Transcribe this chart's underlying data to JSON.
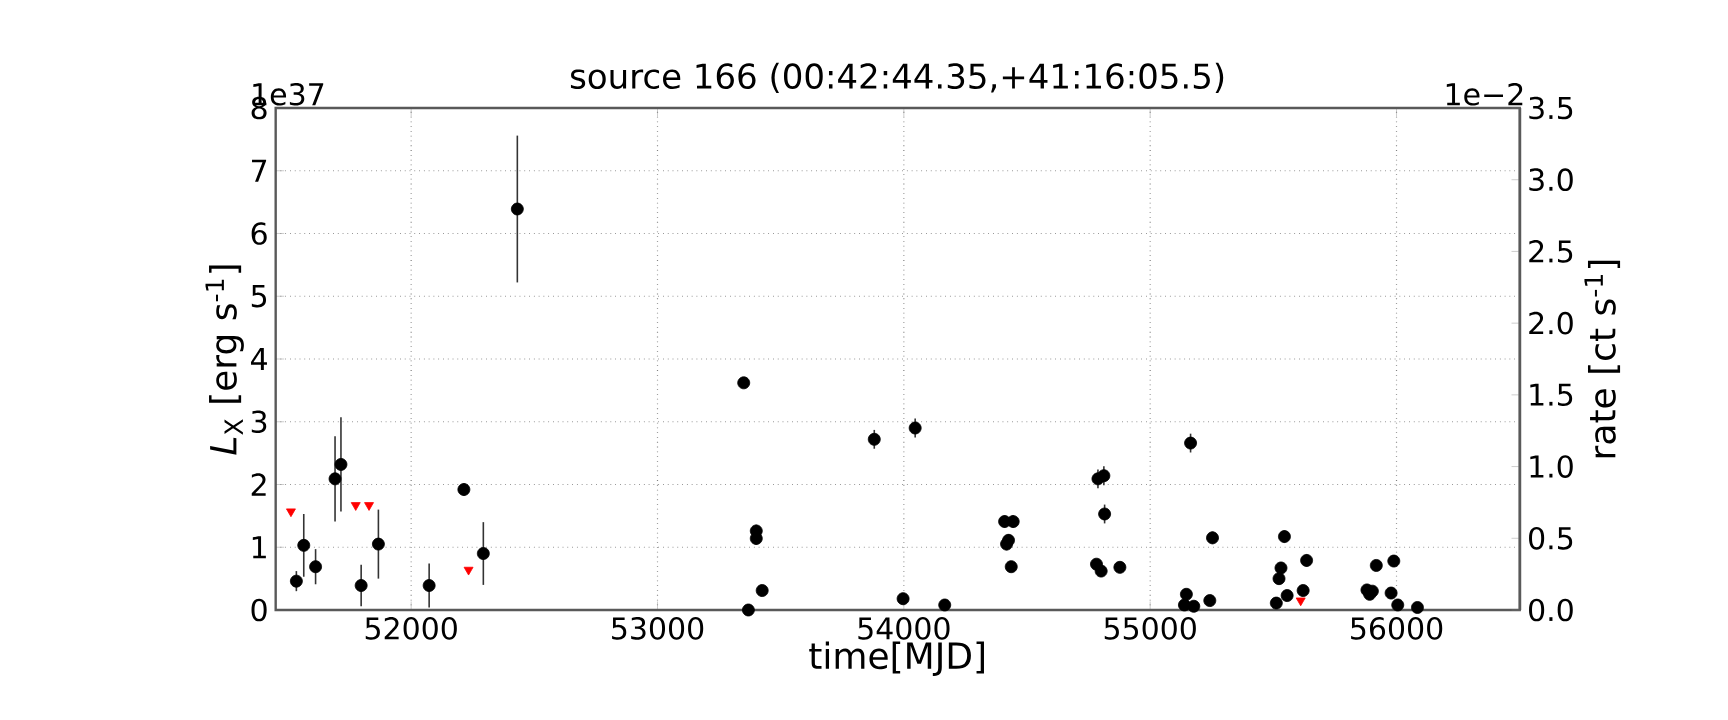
{
  "chart_data": {
    "type": "scatter",
    "title": "source 166    (00:42:44.35,+41:16:05.5)",
    "xlabel": "time[MJD]",
    "ylabel": "*L*$_{X}$ [erg s$^{-1}$]",
    "y2label": "rate [ct s$^{-1}$]",
    "annotations": [
      "1e37",
      "1e−2"
    ],
    "xlim": [
      51450,
      56500
    ],
    "xticks": [
      52000,
      53000,
      54000,
      55000,
      56000
    ],
    "ylim": [
      0,
      8
    ],
    "yticks": [
      0,
      1,
      2,
      3,
      4,
      5,
      6,
      7,
      8
    ],
    "y2lim": [
      0,
      3.5
    ],
    "y2ticks": [
      {
        "value": 0,
        "label": "0.0"
      },
      {
        "value": 0.5,
        "label": "0.5"
      },
      {
        "value": 1,
        "label": "1.0"
      },
      {
        "value": 1.5,
        "label": "1.5"
      },
      {
        "value": 2,
        "label": "2.0"
      },
      {
        "value": 2.5,
        "label": "2.5"
      },
      {
        "value": 3,
        "label": "3.0"
      },
      {
        "value": 3.5,
        "label": "3.5"
      }
    ],
    "grid": true,
    "series": [
      {
        "color": "#000000",
        "marker": "circle",
        "x": [
          51534,
          51564,
          51612,
          51691,
          51715,
          51797,
          51867,
          52073,
          52214,
          52293,
          52431,
          53350,
          53369,
          53401,
          53401,
          53425,
          53880,
          54046,
          53997,
          54166,
          54409,
          54444,
          54417,
          54425,
          54436,
          54788,
          54812,
          54815,
          54782,
          54801,
          54877,
          55164,
          55147,
          55139,
          55177,
          55253,
          55242,
          55545,
          55512,
          55531,
          55523,
          55556,
          55621,
          55635,
          55880,
          55902,
          55891,
          55918,
          55978,
          55989,
          56005,
          56085
        ],
        "values": [
          0.46,
          1.03,
          0.69,
          2.09,
          2.32,
          0.39,
          1.05,
          0.39,
          1.92,
          0.9,
          6.39,
          3.62,
          0.0,
          1.26,
          1.14,
          0.31,
          2.72,
          2.9,
          0.18,
          0.08,
          1.41,
          1.41,
          1.05,
          1.11,
          0.69,
          2.09,
          2.14,
          1.53,
          0.73,
          0.62,
          0.68,
          2.66,
          0.25,
          0.08,
          0.06,
          1.15,
          0.15,
          1.17,
          0.11,
          0.67,
          0.5,
          0.23,
          0.31,
          0.79,
          0.32,
          0.3,
          0.25,
          0.71,
          0.27,
          0.78,
          0.08,
          0.04
        ],
        "errors": [
          0.16,
          0.5,
          0.28,
          0.68,
          0.75,
          0.33,
          0.55,
          0.35,
          0.1,
          0.5,
          1.17,
          0.08,
          null,
          0.1,
          0.1,
          null,
          0.15,
          0.15,
          null,
          null,
          0.1,
          0.1,
          0.1,
          0.1,
          null,
          0.15,
          0.15,
          0.15,
          null,
          null,
          null,
          0.15,
          null,
          null,
          null,
          0.1,
          null,
          0.1,
          null,
          null,
          null,
          null,
          null,
          0.1,
          null,
          null,
          null,
          null,
          null,
          null,
          null,
          null
        ]
      },
      {
        "color": "#ff0000",
        "marker": "triangle",
        "x": [
          51512,
          51775,
          51829,
          52233,
          55611
        ],
        "values": [
          1.57,
          1.67,
          1.67,
          0.64,
          0.15
        ]
      }
    ]
  }
}
